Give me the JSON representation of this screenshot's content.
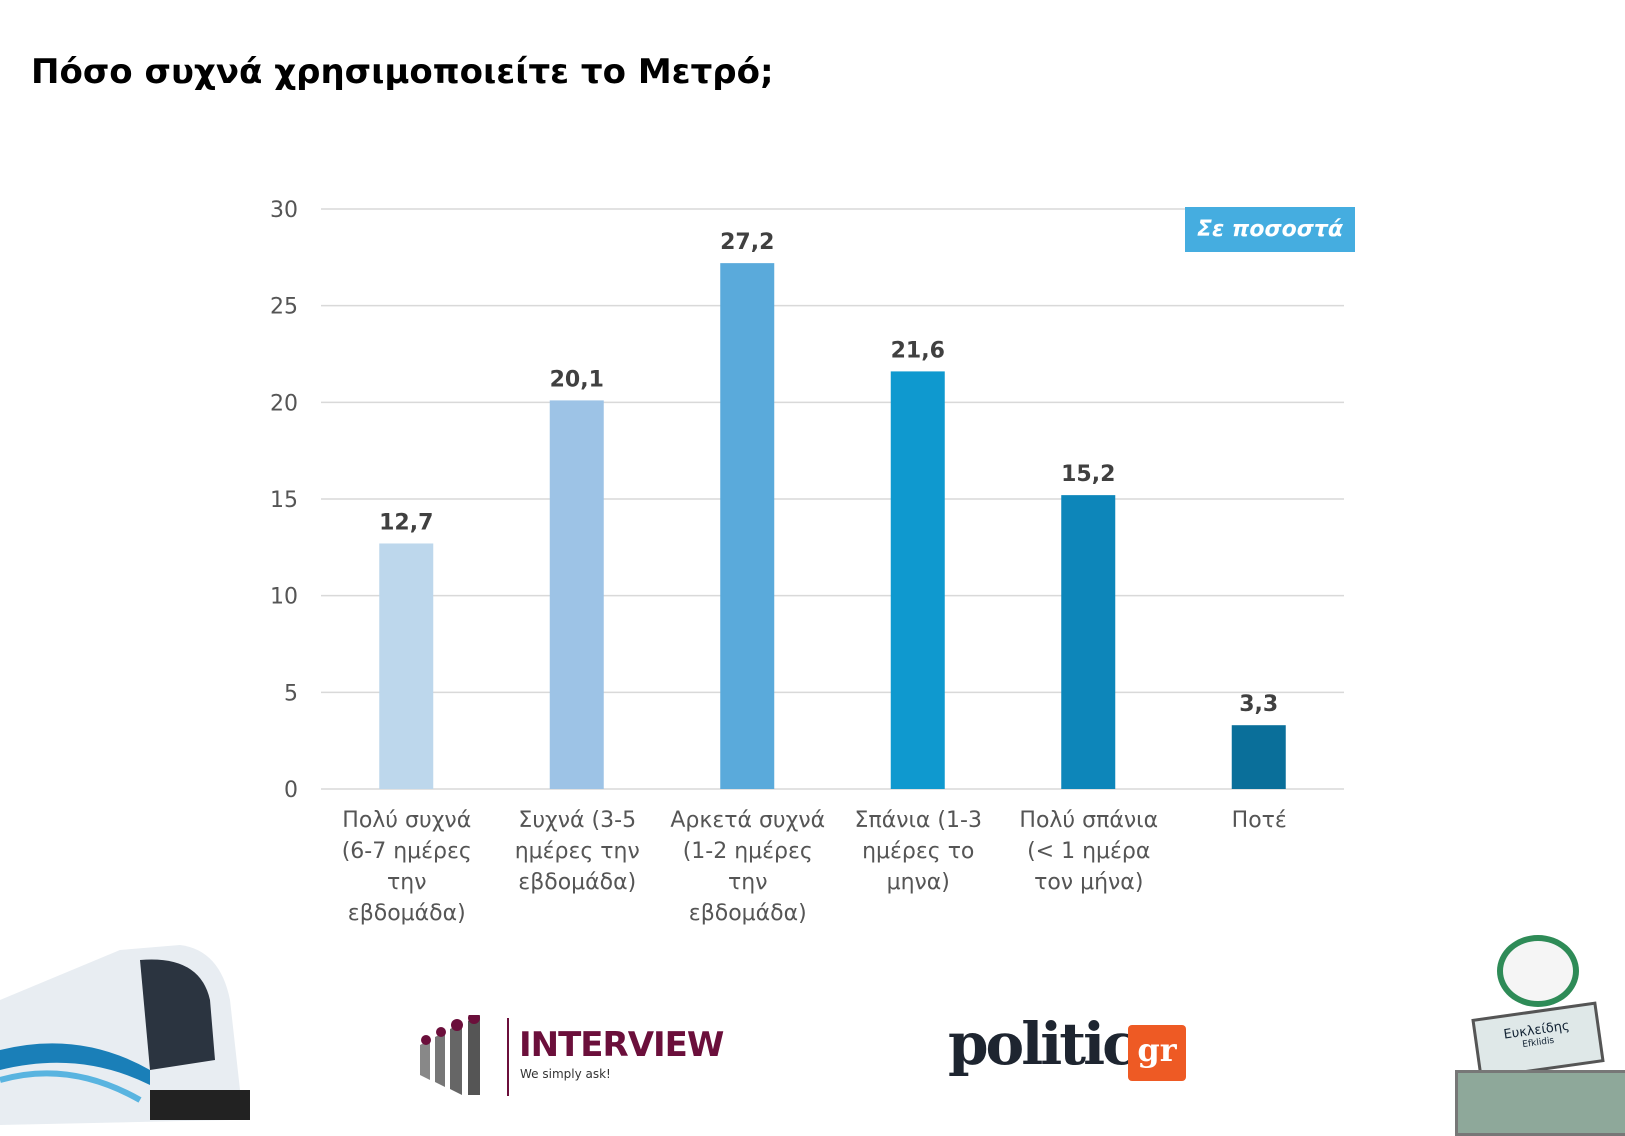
{
  "title": "Πόσο συχνά χρησιμοποιείτε το Μετρό;",
  "badge": "Σε ποσοστά",
  "chart_data": {
    "type": "bar",
    "title": "Πόσο συχνά χρησιμοποιείτε το Μετρό;",
    "categories": [
      "Πολύ συχνά (6-7 ημέρες την εβδομάδα)",
      "Συχνά (3-5 ημέρες την εβδομάδα)",
      "Αρκετά συχνά (1-2 ημέρες την εβδομάδα)",
      "Σπάνια (1-3 ημέρες το μήνα)",
      "Πολύ σπάνια (< 1 ημέρα τον μήνα)",
      "Ποτέ"
    ],
    "category_lines": [
      [
        "Πολύ συχνά",
        "(6-7 ημέρες",
        "την",
        "εβδομάδα)"
      ],
      [
        "Συχνά (3-5",
        "ημέρες την",
        "εβδομάδα)"
      ],
      [
        "Αρκετά συχνά",
        "(1-2 ημέρες",
        "την",
        "εβδομάδα)"
      ],
      [
        "Σπάνια (1-3",
        "ημέρες το",
        "μηνα)"
      ],
      [
        "Πολύ σπάνια",
        "(< 1 ημέρα",
        "τον μήνα)"
      ],
      [
        "Ποτέ"
      ]
    ],
    "values": [
      12.7,
      20.1,
      27.2,
      21.6,
      15.2,
      3.3
    ],
    "labels": [
      "12,7",
      "20,1",
      "27,2",
      "21,6",
      "15,2",
      "3,3"
    ],
    "colors": [
      "#bdd7ec",
      "#9dc3e6",
      "#5aaadb",
      "#0f99cf",
      "#0d86ba",
      "#0a6f9a"
    ],
    "ylim": [
      0,
      30
    ],
    "yticks": [
      0,
      5,
      10,
      15,
      20,
      25,
      30
    ],
    "grid": true,
    "xlabel": "",
    "ylabel": ""
  },
  "logos": {
    "interview": "INTERVIEW",
    "interview_tag": "We simply ask!",
    "politic": "politic",
    "politic_gr": "gr",
    "sign_station": "Ευκλείδης",
    "sign_station_en": "Efklidis"
  }
}
